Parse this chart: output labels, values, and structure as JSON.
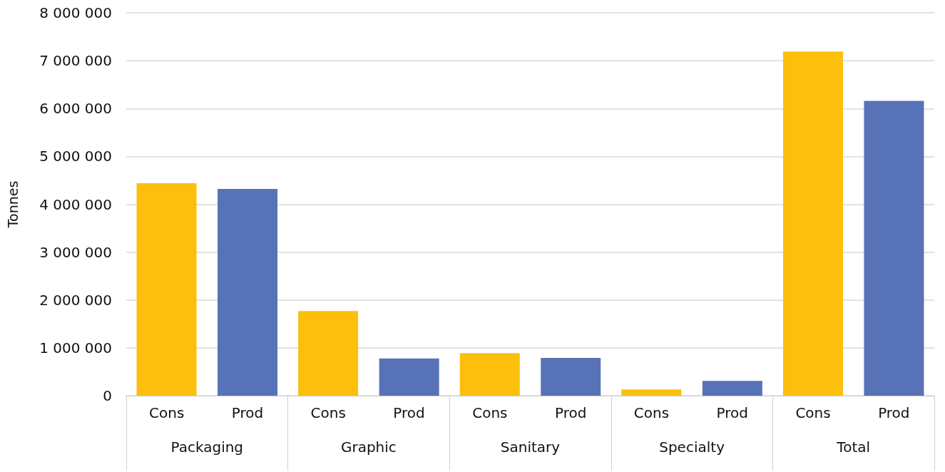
{
  "chart_data": {
    "type": "bar",
    "ylabel": "Tonnes",
    "categories": [
      "Packaging",
      "Graphic",
      "Sanitary",
      "Specialty",
      "Total"
    ],
    "series": [
      {
        "name": "Cons",
        "color": "#fbbf0c",
        "values": [
          4440000,
          1770000,
          890000,
          130000,
          7190000
        ]
      },
      {
        "name": "Prod",
        "color": "#5872b7",
        "values": [
          4320000,
          780000,
          790000,
          310000,
          6160000
        ]
      }
    ],
    "ylim": [
      0,
      8000000
    ],
    "yticks": [
      {
        "value": 0,
        "label": "0"
      },
      {
        "value": 1000000,
        "label": "1 000 000"
      },
      {
        "value": 2000000,
        "label": "2 000 000"
      },
      {
        "value": 3000000,
        "label": "3 000 000"
      },
      {
        "value": 4000000,
        "label": "4 000 000"
      },
      {
        "value": 5000000,
        "label": "5 000 000"
      },
      {
        "value": 6000000,
        "label": "6 000 000"
      },
      {
        "value": 7000000,
        "label": "7 000 000"
      },
      {
        "value": 8000000,
        "label": "8 000 000"
      }
    ],
    "grid": "y",
    "legend": false
  }
}
